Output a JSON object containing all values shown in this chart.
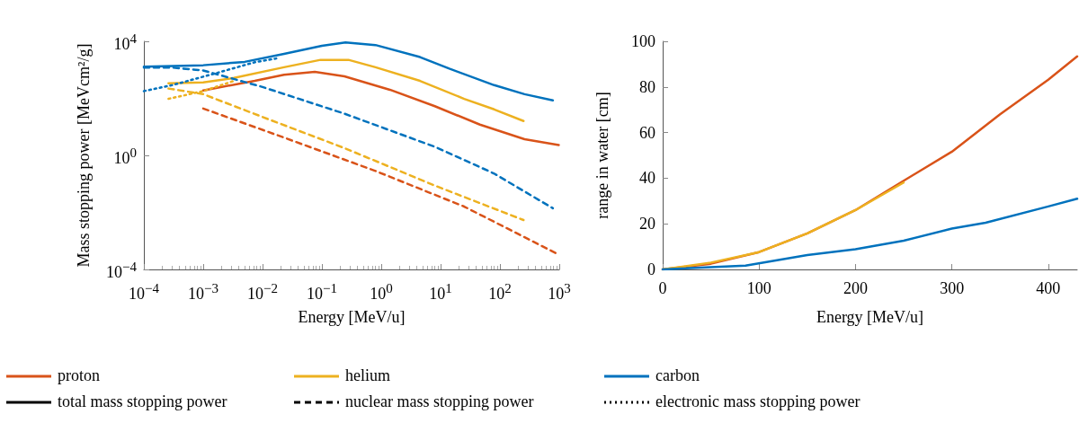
{
  "chart_data": [
    {
      "type": "line",
      "xlabel": "Energy [MeV/u]",
      "ylabel": "Mass stopping power [MeVcm²/g]",
      "log": "xy",
      "xlim": [
        0.0001,
        1000
      ],
      "ylim": [
        0.0001,
        10000
      ],
      "xticks": [
        {
          "value": 0.0001,
          "label": "10$^{−4}$"
        },
        {
          "value": 0.001,
          "label": "10$^{−3}$"
        },
        {
          "value": 0.01,
          "label": "10$^{−2}$"
        },
        {
          "value": 0.1,
          "label": "10$^{−1}$"
        },
        {
          "value": 1,
          "label": "10$^{0}$"
        },
        {
          "value": 10,
          "label": "10$^{1}$"
        },
        {
          "value": 100,
          "label": "10$^{2}$"
        },
        {
          "value": 1000,
          "label": "10$^{3}$"
        }
      ],
      "yticks": [
        {
          "value": 0.0001,
          "label": "10$^{−4}$"
        },
        {
          "value": 1,
          "label": "10$^{0}$"
        },
        {
          "value": 10000,
          "label": "10$^{4}$"
        }
      ],
      "grid": false,
      "marker": "none",
      "annotations": [
        "total mass stopping power",
        "nuclear mass stopping power",
        "electronic mass stopping power"
      ],
      "series": [
        {
          "color": "#d95319",
          "line_style": "solid",
          "x": [
            0.001,
            0.0074,
            0.023,
            0.076,
            0.24,
            1.4,
            8,
            46,
            260,
            980
          ],
          "values": [
            190,
            410,
            670,
            850,
            590,
            200,
            53,
            12,
            3.7,
            2.3
          ]
        },
        {
          "color": "#edb120",
          "line_style": "solid",
          "x": [
            0.00026,
            0.001,
            0.0033,
            0.023,
            0.095,
            0.28,
            0.8,
            4.5,
            25,
            80,
            250
          ],
          "values": [
            340,
            360,
            520,
            1230,
            2240,
            2240,
            1230,
            410,
            96,
            41,
            16
          ]
        },
        {
          "color": "#0072bd",
          "line_style": "solid",
          "x": [
            0.0001,
            0.001,
            0.005,
            0.023,
            0.1,
            0.25,
            0.8,
            4.5,
            14,
            80,
            260,
            780
          ],
          "values": [
            1300,
            1450,
            1900,
            3600,
            7000,
            9100,
            7400,
            2800,
            1100,
            290,
            140,
            85
          ]
        },
        {
          "color": "#d95319",
          "line_style": "dashed",
          "x": [
            0.001,
            0.023,
            0.78,
            25,
            980
          ],
          "values": [
            44,
            4.2,
            0.29,
            0.016,
            0.00033
          ]
        },
        {
          "color": "#edb120",
          "line_style": "dashed",
          "x": [
            0.00026,
            0.001,
            0.013,
            0.24,
            8,
            250
          ],
          "values": [
            220,
            140,
            18,
            1.8,
            0.087,
            0.0054
          ]
        },
        {
          "color": "#0072bd",
          "line_style": "dashed",
          "x": [
            0.0001,
            0.0003,
            0.001,
            0.01,
            0.24,
            8,
            80,
            780
          ],
          "values": [
            1200,
            1200,
            950,
            250,
            29,
            2,
            0.23,
            0.014
          ]
        },
        {
          "color": "#edb120",
          "line_style": "dotted",
          "x": [
            0.00026,
            0.001,
            0.0033
          ],
          "values": [
            96,
            180,
            410
          ]
        },
        {
          "color": "#0072bd",
          "line_style": "dotted",
          "x": [
            0.0001,
            0.0003,
            0.0016,
            0.0074,
            0.017
          ],
          "values": [
            180,
            290,
            750,
            1850,
            2500
          ]
        }
      ]
    },
    {
      "type": "line",
      "xlabel": "Energy [MeV/u]",
      "ylabel": "range in water [cm]",
      "xlim": [
        0,
        430
      ],
      "ylim": [
        0,
        100
      ],
      "xticks": [
        0,
        100,
        200,
        300,
        400
      ],
      "yticks": [
        0,
        20,
        40,
        60,
        80,
        100
      ],
      "grid": false,
      "marker": "none",
      "legend": "bottom",
      "series": [
        {
          "name": "proton",
          "color": "#d95319",
          "x": [
            0,
            50,
            100,
            150,
            200,
            250,
            300,
            350,
            400,
            430
          ],
          "values": [
            0,
            2.5,
            7.6,
            15.8,
            26,
            38.9,
            51.6,
            68,
            83.2,
            93.4
          ]
        },
        {
          "name": "helium",
          "color": "#edb120",
          "x": [
            0,
            50,
            100,
            150,
            200,
            250
          ],
          "values": [
            0,
            3,
            7.6,
            15.8,
            26,
            38.1
          ]
        },
        {
          "name": "carbon",
          "color": "#0072bd",
          "x": [
            0,
            86,
            150,
            200,
            250,
            300,
            335,
            400,
            430
          ],
          "values": [
            0,
            1.7,
            6.3,
            8.9,
            12.6,
            17.9,
            20.5,
            27.6,
            31
          ]
        }
      ]
    }
  ]
}
